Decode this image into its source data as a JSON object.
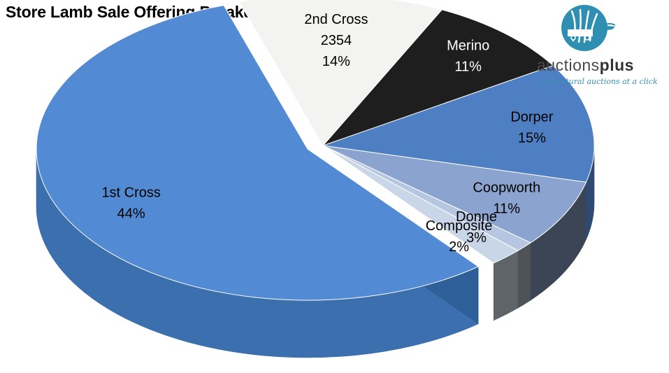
{
  "title": "Store Lamb Sale Offering Breakdown",
  "logo": {
    "name_part1": "auctions",
    "name_part2": "plus",
    "tagline": "agricultural auctions at a click",
    "icon": "wheat-sheaf-truck-icon",
    "colors": {
      "circle": "#2f8fb3",
      "text": "#4a4a4a",
      "tagline": "#3a8fb5"
    }
  },
  "chart_data": {
    "type": "pie",
    "style": "3d-exploded",
    "title": "Store Lamb Sale Offering Breakdown",
    "slices": [
      {
        "label": "1st Cross",
        "percent": 44,
        "color": "#528bd4",
        "side": "#3b6fae"
      },
      {
        "label": "Donne",
        "percent": 3,
        "color": "#c9d6e8",
        "side": "#5f6468"
      },
      {
        "label": "Composite",
        "percent": 2,
        "color": "#b7c6e0",
        "side": "#4e5357"
      },
      {
        "label": "Coopworth",
        "percent": 11,
        "color": "#8aa4cf",
        "side": "#3b4556"
      },
      {
        "label": "Dorper",
        "percent": 15,
        "color": "#4e7fc2",
        "side": "#2f4a72"
      },
      {
        "label": "Merino",
        "percent": 11,
        "color": "#1e1e1e",
        "side": "#111111"
      },
      {
        "label": "2nd Cross",
        "value": 2354,
        "percent": 14,
        "color": "#f3f3f1",
        "side": "#d8d8d6"
      }
    ],
    "labels": [
      {
        "lines": [
          "1st Cross",
          "44%"
        ],
        "color": "#000000"
      },
      {
        "lines": [
          "2nd Cross",
          "2354",
          "14%"
        ],
        "color": "#000000"
      },
      {
        "lines": [
          "Merino",
          "11%"
        ],
        "color": "#ffffff"
      },
      {
        "lines": [
          "Dorper",
          "15%"
        ],
        "color": "#000000"
      },
      {
        "lines": [
          "Coopworth",
          "11%"
        ],
        "color": "#000000"
      },
      {
        "lines": [
          "Composite",
          "2%"
        ],
        "color": "#000000"
      },
      {
        "lines": [
          "Donne",
          "3%"
        ],
        "color": "#000000"
      }
    ]
  }
}
